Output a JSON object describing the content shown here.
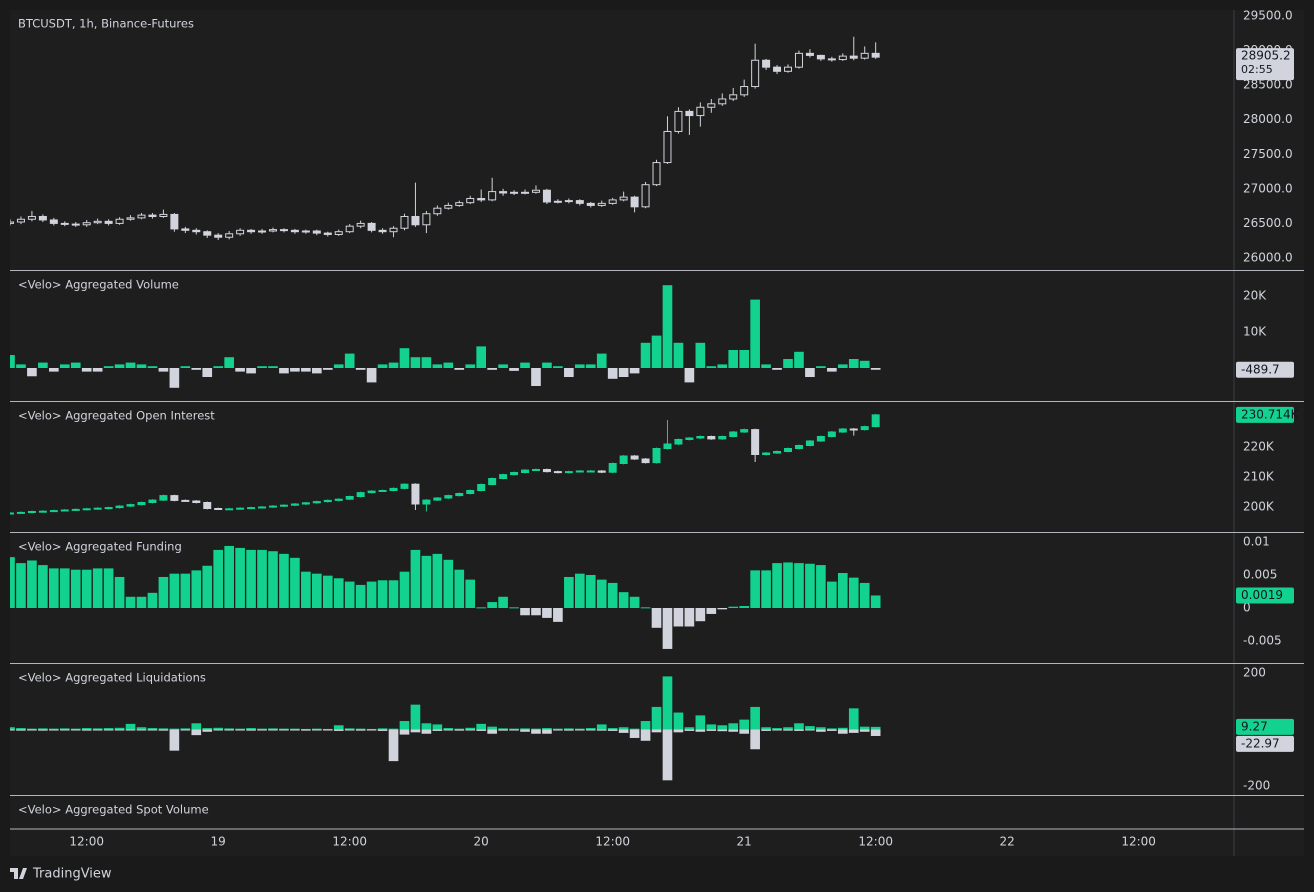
{
  "chart_data": [
    {
      "type": "candlestick",
      "title": "BTCUSDT, 1h, Binance-Futures",
      "up_color": "#d1d4dc",
      "down_color": "#d1d4dc",
      "hollow_up": true,
      "countdown": "02:55",
      "x": [
        5,
        6,
        7,
        8,
        9,
        10,
        11,
        12,
        13,
        14,
        15,
        16,
        17,
        18,
        19,
        20,
        21,
        22,
        23,
        24,
        25,
        26,
        27,
        28,
        29,
        30,
        31,
        32,
        33,
        34,
        35,
        36,
        37,
        38,
        39,
        40,
        41,
        42,
        43,
        44,
        45,
        46,
        47,
        48,
        49,
        50,
        51,
        52,
        53,
        54,
        55,
        56,
        57,
        58,
        59,
        60,
        61,
        62,
        63,
        64,
        65,
        66,
        67,
        68,
        69,
        70,
        71,
        72,
        73,
        74,
        75,
        76,
        77,
        78,
        79,
        80,
        81,
        82,
        83,
        84
      ],
      "xlim": [
        5,
        116.7
      ],
      "xticks": [
        {
          "value": 12,
          "label": "12:00"
        },
        {
          "value": 24,
          "label": "19"
        },
        {
          "value": 36,
          "label": "12:00"
        },
        {
          "value": 48,
          "label": "20"
        },
        {
          "value": 60,
          "label": "12:00"
        },
        {
          "value": 72,
          "label": "21"
        },
        {
          "value": 84,
          "label": "12:00"
        },
        {
          "value": 96,
          "label": "22"
        },
        {
          "value": 108,
          "label": "12:00"
        }
      ],
      "ylim": [
        25826,
        29587
      ],
      "yticks": [
        {
          "value": 26000,
          "label": "26000.0"
        },
        {
          "value": 26500,
          "label": "26500.0"
        },
        {
          "value": 27000,
          "label": "27000.0"
        },
        {
          "value": 27500,
          "label": "27500.0"
        },
        {
          "value": 28000,
          "label": "28000.0"
        },
        {
          "value": 28500,
          "label": "28500.0"
        },
        {
          "value": 29000,
          "label": "29000.0"
        },
        {
          "value": 29500,
          "label": "29500.0"
        }
      ],
      "open": [
        26500,
        26520,
        26560,
        26600,
        26550,
        26500,
        26490,
        26480,
        26510,
        26530,
        26500,
        26560,
        26580,
        26620,
        26600,
        26630,
        26420,
        26400,
        26380,
        26330,
        26300,
        26350,
        26400,
        26380,
        26390,
        26410,
        26400,
        26380,
        26390,
        26360,
        26340,
        26380,
        26460,
        26500,
        26400,
        26380,
        26430,
        26600,
        26480,
        26640,
        26720,
        26760,
        26800,
        26860,
        26840,
        26960,
        26940,
        26950,
        26950,
        26980,
        26810,
        26820,
        26830,
        26790,
        26760,
        26790,
        26840,
        26880,
        26740,
        27060,
        27380,
        27830,
        28120,
        28060,
        28180,
        28230,
        28300,
        28360,
        28480,
        28860,
        28760,
        28700,
        28760,
        28960,
        28930,
        28880,
        28870,
        28920,
        28890,
        28960
      ],
      "high": [
        26560,
        26600,
        26680,
        26630,
        26580,
        26530,
        26520,
        26550,
        26570,
        26560,
        26590,
        26620,
        26650,
        26650,
        26700,
        26650,
        26450,
        26430,
        26400,
        26360,
        26390,
        26430,
        26420,
        26420,
        26440,
        26430,
        26420,
        26410,
        26410,
        26380,
        26410,
        26490,
        26540,
        26520,
        26430,
        26460,
        26640,
        27090,
        26680,
        26760,
        26800,
        26830,
        26900,
        26990,
        27160,
        27000,
        26980,
        26990,
        27050,
        27000,
        26850,
        26860,
        26850,
        26810,
        26830,
        26870,
        26960,
        26900,
        27100,
        27420,
        28050,
        28180,
        28150,
        28250,
        28300,
        28380,
        28460,
        28580,
        29100,
        28880,
        28790,
        28800,
        29000,
        29020,
        28940,
        28910,
        28960,
        29200,
        29060,
        29120
      ],
      "low": [
        26470,
        26490,
        26530,
        26520,
        26470,
        26460,
        26450,
        26450,
        26490,
        26470,
        26480,
        26540,
        26560,
        26570,
        26580,
        26380,
        26360,
        26340,
        26290,
        26260,
        26270,
        26320,
        26350,
        26350,
        26370,
        26370,
        26350,
        26350,
        26330,
        26310,
        26320,
        26360,
        26430,
        26370,
        26350,
        26300,
        26400,
        26450,
        26360,
        26610,
        26700,
        26740,
        26780,
        26810,
        26820,
        26900,
        26910,
        26920,
        26930,
        26780,
        26790,
        26790,
        26760,
        26730,
        26740,
        26770,
        26820,
        26660,
        26720,
        27040,
        27360,
        27800,
        27780,
        27900,
        28100,
        28200,
        28270,
        28330,
        28450,
        28720,
        28660,
        28680,
        28740,
        28900,
        28850,
        28840,
        28850,
        28860,
        28870,
        28880
      ],
      "close": [
        26520,
        26560,
        26600,
        26550,
        26500,
        26490,
        26480,
        26510,
        26530,
        26500,
        26560,
        26580,
        26620,
        26600,
        26630,
        26420,
        26400,
        26380,
        26330,
        26300,
        26350,
        26400,
        26380,
        26390,
        26410,
        26400,
        26380,
        26390,
        26360,
        26340,
        26380,
        26460,
        26500,
        26400,
        26380,
        26430,
        26600,
        26480,
        26640,
        26720,
        26760,
        26800,
        26860,
        26840,
        26960,
        26940,
        26950,
        26950,
        26980,
        26810,
        26820,
        26830,
        26790,
        26760,
        26790,
        26840,
        26880,
        26740,
        27060,
        27380,
        27830,
        28120,
        28060,
        28180,
        28230,
        28300,
        28360,
        28480,
        28860,
        28760,
        28700,
        28760,
        28960,
        28930,
        28880,
        28870,
        28920,
        28890,
        28960,
        28905.2
      ]
    },
    {
      "type": "bar",
      "title": "<Velo> Aggregated Volume",
      "positive_color": "#13d18f",
      "negative_color": "#d1d4dc",
      "ylim": [
        -9167,
        26944
      ],
      "yticks": [
        {
          "value": 10000,
          "label": "10K"
        },
        {
          "value": 20000,
          "label": "20K"
        }
      ],
      "values": [
        3600,
        1000,
        -2300,
        1500,
        -1000,
        1000,
        1500,
        -1000,
        -1000,
        500,
        1000,
        1500,
        1000,
        500,
        -1000,
        -5500,
        500,
        -500,
        -2500,
        500,
        3000,
        -1000,
        -1500,
        500,
        500,
        -1500,
        -1000,
        -1000,
        -1500,
        -500,
        1000,
        4000,
        -500,
        -4000,
        1000,
        1500,
        5500,
        3000,
        3000,
        1000,
        1500,
        -500,
        1000,
        6000,
        -500,
        1000,
        -800,
        1500,
        -5000,
        1500,
        500,
        -2500,
        1000,
        1000,
        4000,
        -3000,
        -2500,
        -1500,
        7000,
        9000,
        23000,
        7000,
        -4000,
        7000,
        500,
        1000,
        5000,
        5000,
        19000,
        1000,
        -500,
        2500,
        4500,
        -2500,
        500,
        -1000,
        1000,
        2500,
        2000,
        -489.7
      ]
    },
    {
      "type": "candlestick",
      "title": "<Velo> Aggregated Open Interest",
      "up_color": "#13d18f",
      "down_color": "#d1d4dc",
      "hollow_up": false,
      "last_value_label": "230.714K",
      "ylim": [
        191667,
        235000
      ],
      "yticks": [
        {
          "value": 200000,
          "label": "200K"
        },
        {
          "value": 210000,
          "label": "210K"
        },
        {
          "value": 220000,
          "label": "220K"
        }
      ],
      "open": [
        197800,
        198000,
        198200,
        198500,
        198600,
        198800,
        199000,
        199200,
        199400,
        199600,
        199800,
        200300,
        200800,
        201500,
        202300,
        203800,
        202200,
        202000,
        201500,
        199500,
        199300,
        199400,
        199600,
        199800,
        200000,
        200300,
        200600,
        201000,
        201400,
        201800,
        202200,
        202600,
        203500,
        204800,
        205300,
        205500,
        206200,
        207600,
        201000,
        202300,
        203000,
        203800,
        204500,
        205500,
        207500,
        209500,
        210800,
        211500,
        212300,
        212500,
        211800,
        211500,
        211800,
        212000,
        212000,
        211600,
        214500,
        217000,
        216000,
        214800,
        219500,
        221000,
        222500,
        223000,
        223500,
        222700,
        223500,
        225000,
        225800,
        217500,
        218000,
        218500,
        219500,
        220500,
        222000,
        223500,
        225000,
        226000,
        225800,
        226800
      ],
      "high": [
        198300,
        198500,
        198800,
        198900,
        199100,
        199300,
        199500,
        199700,
        199900,
        200100,
        200600,
        201100,
        201800,
        202600,
        204100,
        204100,
        202500,
        202300,
        201800,
        199800,
        199700,
        199900,
        200100,
        200300,
        200600,
        200900,
        201300,
        201700,
        202100,
        202500,
        202900,
        203800,
        205100,
        205600,
        205800,
        206500,
        207900,
        207900,
        202600,
        203300,
        204100,
        204800,
        205800,
        207800,
        209800,
        211100,
        211800,
        212600,
        212800,
        212800,
        212100,
        212100,
        212300,
        212300,
        212300,
        214800,
        217300,
        217300,
        216300,
        219800,
        229000,
        222800,
        223300,
        223800,
        223800,
        223800,
        225300,
        226100,
        226100,
        218300,
        218800,
        219800,
        220800,
        222300,
        223800,
        225300,
        226300,
        226300,
        227100,
        231014
      ],
      "low": [
        197500,
        197700,
        197900,
        198200,
        198300,
        198500,
        198700,
        198900,
        199100,
        199300,
        199500,
        200000,
        200500,
        201200,
        202000,
        201900,
        201700,
        201200,
        199200,
        199000,
        199000,
        199100,
        199300,
        199500,
        199700,
        200000,
        200300,
        200700,
        201100,
        201500,
        201900,
        202300,
        203200,
        204500,
        205000,
        205200,
        205900,
        199000,
        198500,
        202000,
        202700,
        203500,
        204200,
        205200,
        207200,
        209200,
        210500,
        211200,
        212000,
        211500,
        211200,
        211200,
        211500,
        211700,
        211300,
        211300,
        214200,
        215700,
        214500,
        214500,
        219200,
        220700,
        222200,
        222700,
        222400,
        222400,
        223200,
        224700,
        215000,
        217200,
        217700,
        218200,
        219200,
        220200,
        221700,
        223200,
        224700,
        223800,
        225500,
        226500
      ],
      "close": [
        198000,
        198200,
        198500,
        198600,
        198800,
        199000,
        199200,
        199400,
        199600,
        199800,
        200300,
        200800,
        201500,
        202300,
        203800,
        202200,
        202000,
        201500,
        199500,
        199300,
        199400,
        199600,
        199800,
        200000,
        200300,
        200600,
        201000,
        201400,
        201800,
        202200,
        202600,
        203500,
        204800,
        205300,
        205500,
        206200,
        207600,
        201000,
        202300,
        203000,
        203800,
        204500,
        205500,
        207500,
        209500,
        210800,
        211500,
        212300,
        212500,
        211800,
        211500,
        211800,
        212000,
        212000,
        211600,
        214500,
        217000,
        216000,
        214800,
        219500,
        221000,
        222500,
        223000,
        223500,
        222700,
        223500,
        225000,
        225800,
        217500,
        218000,
        218500,
        219500,
        220500,
        222000,
        223500,
        225000,
        226000,
        225800,
        226800,
        230714
      ]
    },
    {
      "type": "bar",
      "title": "<Velo> Aggregated Funding",
      "positive_color": "#13d18f",
      "negative_color": "#d1d4dc",
      "ylim": [
        -0.00833,
        0.01136
      ],
      "yticks": [
        -0.005,
        0,
        0.005,
        0.01
      ],
      "values": [
        0.0077,
        0.0068,
        0.0072,
        0.0065,
        0.006,
        0.006,
        0.0058,
        0.0058,
        0.006,
        0.006,
        0.0047,
        0.0017,
        0.0017,
        0.0023,
        0.0047,
        0.0052,
        0.0052,
        0.0057,
        0.0064,
        0.0088,
        0.0094,
        0.0091,
        0.0088,
        0.0088,
        0.0086,
        0.0082,
        0.0076,
        0.0055,
        0.0052,
        0.0049,
        0.0045,
        0.004,
        0.0035,
        0.004,
        0.0042,
        0.0042,
        0.0055,
        0.0088,
        0.0079,
        0.0082,
        0.0073,
        0.0058,
        0.0043,
        0.0001,
        0.0009,
        0.0017,
        0.0001,
        -0.0011,
        -0.0011,
        -0.0015,
        -0.0021,
        0.0047,
        0.0052,
        0.005,
        0.0043,
        0.0038,
        0.0024,
        0.0017,
        0.0001,
        -0.003,
        -0.0062,
        -0.0028,
        -0.0028,
        -0.002,
        -0.0009,
        -0.0002,
        0.0002,
        0.0003,
        0.0057,
        0.0057,
        0.0068,
        0.0069,
        0.0068,
        0.0067,
        0.0065,
        0.004,
        0.0053,
        0.0046,
        0.0038,
        0.0019
      ]
    },
    {
      "type": "bar",
      "title": "<Velo> Aggregated Liquidations",
      "ylim": [
        -232,
        232
      ],
      "yticks": [
        -200,
        200
      ],
      "series": [
        {
          "color": "#13d18f",
          "values": [
            8,
            5,
            3,
            4,
            3,
            4,
            3,
            5,
            4,
            5,
            6,
            20,
            8,
            5,
            4,
            3,
            4,
            22,
            5,
            6,
            4,
            3,
            5,
            3,
            4,
            3,
            3,
            2,
            3,
            2,
            15,
            4,
            3,
            2,
            4,
            3,
            30,
            88,
            22,
            18,
            5,
            3,
            6,
            20,
            10,
            4,
            3,
            4,
            3,
            5,
            3,
            4,
            3,
            5,
            18,
            5,
            8,
            3,
            30,
            80,
            188,
            60,
            8,
            50,
            18,
            15,
            22,
            35,
            80,
            8,
            5,
            8,
            22,
            12,
            8,
            4,
            6,
            75,
            10,
            9.27
          ]
        },
        {
          "color": "#d1d4dc",
          "values": [
            -3,
            -4,
            -3,
            -4,
            -3,
            -2,
            -3,
            -4,
            -3,
            -3,
            -2,
            -3,
            -3,
            -2,
            -4,
            -75,
            -3,
            -20,
            -8,
            -3,
            -2,
            -3,
            -4,
            -3,
            -3,
            -2,
            -3,
            -4,
            -3,
            -3,
            -5,
            -3,
            -4,
            -3,
            -5,
            -112,
            -18,
            -10,
            -15,
            -5,
            -3,
            -4,
            -3,
            -5,
            -15,
            -4,
            -3,
            -8,
            -15,
            -15,
            -3,
            -4,
            -3,
            -3,
            -4,
            -5,
            -12,
            -30,
            -40,
            -10,
            -180,
            -10,
            -5,
            -8,
            -5,
            -6,
            -8,
            -15,
            -70,
            -5,
            -3,
            -4,
            -5,
            -3,
            -8,
            -5,
            -15,
            -12,
            -8,
            -22.97
          ]
        }
      ]
    },
    {
      "type": "bar",
      "title": "<Velo> Aggregated Spot Volume"
    }
  ],
  "footer": {
    "brand": "TradingView"
  }
}
